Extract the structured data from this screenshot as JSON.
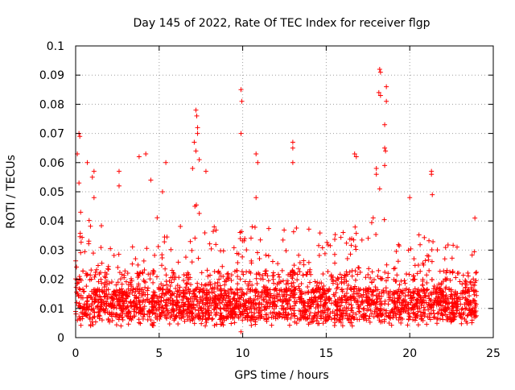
{
  "chart_data": {
    "type": "scatter",
    "title": "Day 145 of 2022, Rate Of TEC Index for receiver flgp",
    "xlabel": "GPS time / hours",
    "ylabel": "ROTI / TECUs",
    "xlim": [
      0,
      25
    ],
    "ylim": [
      0,
      0.1
    ],
    "grid": true,
    "marker": "+",
    "color": "#ff0000",
    "x_ticks": [
      0,
      5,
      10,
      15,
      20,
      25
    ],
    "x_tick_labels": [
      "0",
      "5",
      "10",
      "15",
      "20",
      "25"
    ],
    "y_ticks": [
      0,
      0.01,
      0.02,
      0.03,
      0.04,
      0.05,
      0.06,
      0.07,
      0.08,
      0.09,
      0.1
    ],
    "y_tick_labels": [
      "0",
      "0.01",
      "0.02",
      "0.03",
      "0.04",
      "0.05",
      "0.06",
      "0.07",
      "0.08",
      "0.09",
      "0.1"
    ],
    "series": [
      {
        "name": "ROTI",
        "data_range_hours": [
          0,
          24
        ],
        "baseline_roti": 0.012,
        "notable_points": [
          {
            "x": 0.2,
            "y": 0.07
          },
          {
            "x": 0.25,
            "y": 0.069
          },
          {
            "x": 0.1,
            "y": 0.063
          },
          {
            "x": 0.2,
            "y": 0.053
          },
          {
            "x": 0.3,
            "y": 0.043
          },
          {
            "x": 0.7,
            "y": 0.06
          },
          {
            "x": 1.0,
            "y": 0.055
          },
          {
            "x": 1.1,
            "y": 0.057
          },
          {
            "x": 1.1,
            "y": 0.048
          },
          {
            "x": 2.6,
            "y": 0.057
          },
          {
            "x": 2.6,
            "y": 0.052
          },
          {
            "x": 3.8,
            "y": 0.062
          },
          {
            "x": 4.2,
            "y": 0.063
          },
          {
            "x": 4.5,
            "y": 0.054
          },
          {
            "x": 5.2,
            "y": 0.05
          },
          {
            "x": 5.4,
            "y": 0.06
          },
          {
            "x": 7.2,
            "y": 0.078
          },
          {
            "x": 7.25,
            "y": 0.076
          },
          {
            "x": 7.3,
            "y": 0.072
          },
          {
            "x": 7.3,
            "y": 0.07
          },
          {
            "x": 7.1,
            "y": 0.067
          },
          {
            "x": 7.2,
            "y": 0.064
          },
          {
            "x": 7.4,
            "y": 0.061
          },
          {
            "x": 7.0,
            "y": 0.058
          },
          {
            "x": 7.8,
            "y": 0.057
          },
          {
            "x": 9.9,
            "y": 0.085
          },
          {
            "x": 9.95,
            "y": 0.081
          },
          {
            "x": 9.9,
            "y": 0.07
          },
          {
            "x": 10.8,
            "y": 0.063
          },
          {
            "x": 10.9,
            "y": 0.06
          },
          {
            "x": 10.8,
            "y": 0.048
          },
          {
            "x": 13.0,
            "y": 0.067
          },
          {
            "x": 13.0,
            "y": 0.065
          },
          {
            "x": 13.0,
            "y": 0.06
          },
          {
            "x": 16.7,
            "y": 0.063
          },
          {
            "x": 16.8,
            "y": 0.062
          },
          {
            "x": 18.0,
            "y": 0.058
          },
          {
            "x": 18.0,
            "y": 0.056
          },
          {
            "x": 18.2,
            "y": 0.092
          },
          {
            "x": 18.25,
            "y": 0.091
          },
          {
            "x": 18.15,
            "y": 0.084
          },
          {
            "x": 18.25,
            "y": 0.083
          },
          {
            "x": 18.6,
            "y": 0.086
          },
          {
            "x": 18.6,
            "y": 0.081
          },
          {
            "x": 18.5,
            "y": 0.073
          },
          {
            "x": 18.5,
            "y": 0.065
          },
          {
            "x": 18.55,
            "y": 0.064
          },
          {
            "x": 18.5,
            "y": 0.059
          },
          {
            "x": 18.2,
            "y": 0.051
          },
          {
            "x": 20.0,
            "y": 0.048
          },
          {
            "x": 21.3,
            "y": 0.057
          },
          {
            "x": 21.3,
            "y": 0.056
          },
          {
            "x": 21.35,
            "y": 0.049
          },
          {
            "x": 23.9,
            "y": 0.041
          },
          {
            "x": 9.9,
            "y": 0.002
          }
        ],
        "activity_profile": [
          {
            "x": 0,
            "peak": 0.03
          },
          {
            "x": 1,
            "peak": 0.038
          },
          {
            "x": 2,
            "peak": 0.033
          },
          {
            "x": 3,
            "peak": 0.026
          },
          {
            "x": 4,
            "peak": 0.032
          },
          {
            "x": 5,
            "peak": 0.04
          },
          {
            "x": 6,
            "peak": 0.035
          },
          {
            "x": 7,
            "peak": 0.045
          },
          {
            "x": 8,
            "peak": 0.036
          },
          {
            "x": 9,
            "peak": 0.03
          },
          {
            "x": 10,
            "peak": 0.034
          },
          {
            "x": 11,
            "peak": 0.035
          },
          {
            "x": 12,
            "peak": 0.034
          },
          {
            "x": 13,
            "peak": 0.033
          },
          {
            "x": 14,
            "peak": 0.036
          },
          {
            "x": 15,
            "peak": 0.03
          },
          {
            "x": 16,
            "peak": 0.034
          },
          {
            "x": 17,
            "peak": 0.036
          },
          {
            "x": 18,
            "peak": 0.04
          },
          {
            "x": 19,
            "peak": 0.035
          },
          {
            "x": 20,
            "peak": 0.032
          },
          {
            "x": 21,
            "peak": 0.034
          },
          {
            "x": 22,
            "peak": 0.03
          },
          {
            "x": 23,
            "peak": 0.028
          },
          {
            "x": 24,
            "peak": 0.025
          }
        ]
      }
    ]
  }
}
